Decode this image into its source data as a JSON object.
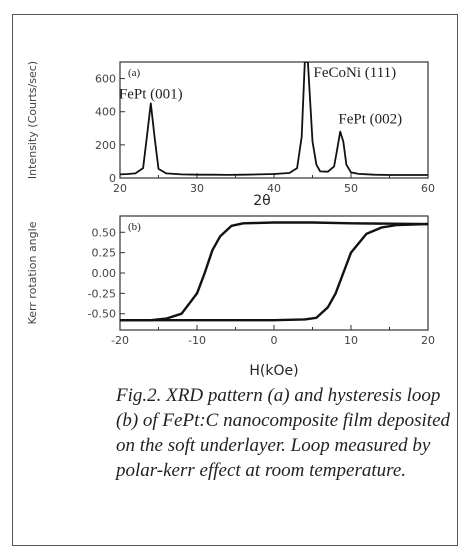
{
  "chart_data": [
    {
      "type": "line",
      "panel_label": "(a)",
      "ylabel": "Intensity (Courts/sec)",
      "xlabel": "2θ",
      "xlim": [
        20,
        60
      ],
      "ylim": [
        0,
        700
      ],
      "xticks": [
        "20",
        "30",
        "40",
        "50",
        "60"
      ],
      "yticks": [
        "0",
        "200",
        "400",
        "600"
      ],
      "annotations": [
        {
          "text": "FePt (001)",
          "x": 24,
          "y": 480
        },
        {
          "text": "FeCoNi (111)",
          "x": 50.5,
          "y": 610
        },
        {
          "text": "FePt (002)",
          "x": 52.5,
          "y": 330
        }
      ],
      "series": [
        {
          "x": [
            20,
            21,
            22,
            23,
            23.5,
            24,
            24.5,
            25,
            26,
            28,
            30,
            32,
            34,
            36,
            38,
            40,
            42,
            43,
            43.6,
            44,
            44.4,
            45,
            45.5,
            46,
            47,
            47.8,
            48.2,
            48.6,
            49,
            49.4,
            50,
            51,
            53,
            55,
            57,
            60
          ],
          "y": [
            22,
            24,
            28,
            60,
            250,
            450,
            240,
            55,
            28,
            22,
            20,
            20,
            19,
            20,
            22,
            24,
            30,
            60,
            250,
            700,
            700,
            220,
            80,
            40,
            38,
            70,
            170,
            280,
            220,
            80,
            34,
            25,
            20,
            18,
            18,
            18
          ]
        }
      ]
    },
    {
      "type": "line",
      "panel_label": "(b)",
      "ylabel": "Kerr rotation angle",
      "xlabel": "H(kOe)",
      "xlim": [
        -20,
        20
      ],
      "ylim": [
        -0.7,
        0.7
      ],
      "xticks": [
        "-20",
        "-10",
        "0",
        "10",
        "20"
      ],
      "yticks": [
        "0.50",
        "0.25",
        "0.00",
        "-0.25",
        "-0.50"
      ],
      "series": [
        {
          "x": [
            20,
            10,
            5,
            0,
            -4,
            -5.5,
            -7,
            -8,
            -9,
            -10,
            -12,
            -14,
            -16,
            -20
          ],
          "y": [
            0.6,
            0.61,
            0.62,
            0.62,
            0.61,
            0.58,
            0.45,
            0.28,
            0.0,
            -0.25,
            -0.5,
            -0.56,
            -0.58,
            -0.58
          ]
        },
        {
          "x": [
            -20,
            -10,
            -5,
            0,
            4,
            5.5,
            7,
            8,
            9,
            10,
            12,
            14,
            16,
            20
          ],
          "y": [
            -0.58,
            -0.58,
            -0.58,
            -0.58,
            -0.57,
            -0.55,
            -0.42,
            -0.25,
            0.0,
            0.25,
            0.48,
            0.56,
            0.59,
            0.6
          ]
        }
      ]
    }
  ],
  "caption": "Fig.2. XRD pattern (a) and hysteresis loop (b) of FePt:C nanocomposite film deposited on the soft underlayer. Loop measured by polar-kerr effect at room temperature."
}
